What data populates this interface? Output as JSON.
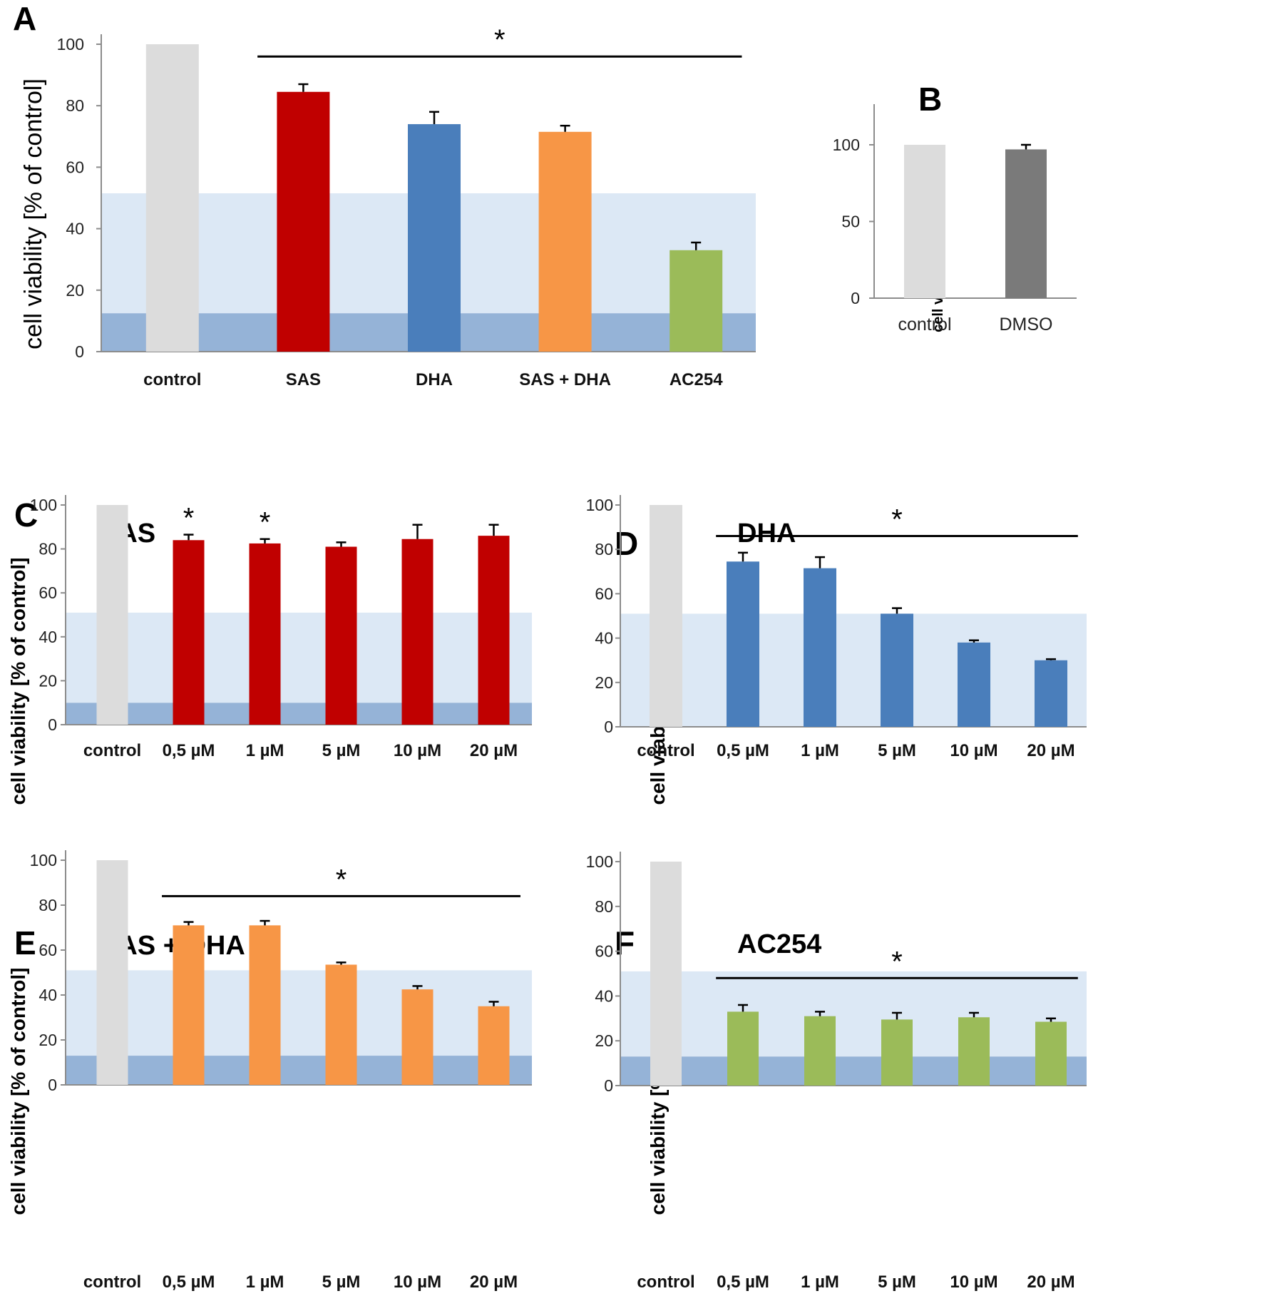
{
  "colors": {
    "control": "#dcdcdc",
    "dmso": "#7a7a7a",
    "sas": "#c00000",
    "dha": "#4a7ebb",
    "combo": "#f79646",
    "ac254": "#9bbb59",
    "band_light": "#dce8f5",
    "band_dark": "#95b3d7"
  },
  "chart_data": [
    {
      "panel": "A",
      "type": "bar",
      "title": "",
      "ylabel": "cell viability  [% of control]",
      "xlabel": "",
      "ylim": [
        0,
        100
      ],
      "yticks": [
        "0",
        "20",
        "40",
        "60",
        "80",
        "100"
      ],
      "categories": [
        "control",
        "SAS",
        "DHA",
        "SAS + DHA",
        "AC254"
      ],
      "values": [
        100,
        84.5,
        74,
        71.5,
        33
      ],
      "errors": [
        0,
        2.5,
        4,
        2,
        2.5
      ],
      "bar_colors": [
        "control",
        "sas",
        "dha",
        "combo",
        "ac254"
      ],
      "bands": [
        [
          0,
          12.5,
          "band_dark"
        ],
        [
          12.5,
          51.5,
          "band_light"
        ]
      ],
      "significance": [
        {
          "label": "*",
          "from": 1,
          "to": 4,
          "level": 96
        }
      ]
    },
    {
      "panel": "B",
      "type": "bar",
      "title": "",
      "ylabel": "cell viability  [% of control]",
      "xlabel": "",
      "ylim": [
        0,
        120
      ],
      "yticks": [
        "0",
        "50",
        "100"
      ],
      "categories": [
        "control",
        "DMSO"
      ],
      "values": [
        100,
        97
      ],
      "errors": [
        0,
        3
      ],
      "bar_colors": [
        "control",
        "dmso"
      ],
      "bands": [],
      "significance": []
    },
    {
      "panel": "C",
      "type": "bar",
      "title": "SAS",
      "ylabel": "cell viability  [% of control]",
      "xlabel": "",
      "ylim": [
        0,
        100
      ],
      "yticks": [
        "0",
        "20",
        "40",
        "60",
        "80",
        "100"
      ],
      "categories": [
        "control",
        "0,5 µM",
        "1 µM",
        "5 µM",
        "10 µM",
        "20 µM"
      ],
      "values": [
        100,
        84,
        82.5,
        81,
        84.5,
        86
      ],
      "errors": [
        0,
        2.5,
        2,
        2,
        6.5,
        5
      ],
      "bar_colors": [
        "control",
        "sas",
        "sas",
        "sas",
        "sas",
        "sas"
      ],
      "bands": [
        [
          0,
          10,
          "band_dark"
        ],
        [
          10,
          51,
          "band_light"
        ]
      ],
      "significance": [
        {
          "label": "*",
          "index": 1
        },
        {
          "label": "*",
          "index": 2
        }
      ]
    },
    {
      "panel": "D",
      "type": "bar",
      "title": "DHA",
      "ylabel": "cell viability  [% of control]",
      "xlabel": "",
      "ylim": [
        0,
        100
      ],
      "yticks": [
        "0",
        "20",
        "40",
        "60",
        "80",
        "100"
      ],
      "categories": [
        "control",
        "0,5 µM",
        "1 µM",
        "5 µM",
        "10 µM",
        "20 µM"
      ],
      "values": [
        100,
        74.5,
        71.5,
        51,
        38,
        30
      ],
      "errors": [
        0,
        4,
        5,
        2.5,
        1,
        0.5
      ],
      "bar_colors": [
        "control",
        "dha",
        "dha",
        "dha",
        "dha",
        "dha"
      ],
      "bands": [
        [
          0,
          51,
          "band_light"
        ]
      ],
      "significance": [
        {
          "label": "*",
          "from": 1,
          "to": 5,
          "level": 86
        }
      ]
    },
    {
      "panel": "E",
      "type": "bar",
      "title": "SAS + DHA",
      "ylabel": "cell viability  [% of control]",
      "xlabel": "",
      "ylim": [
        0,
        100
      ],
      "yticks": [
        "0",
        "20",
        "40",
        "60",
        "80",
        "100"
      ],
      "categories": [
        "control",
        "0,5 µM",
        "1 µM",
        "5 µM",
        "10 µM",
        "20 µM"
      ],
      "values": [
        100,
        71,
        71,
        53.5,
        42.5,
        35
      ],
      "errors": [
        0,
        1.5,
        2,
        1,
        1.5,
        2
      ],
      "bar_colors": [
        "control",
        "combo",
        "combo",
        "combo",
        "combo",
        "combo"
      ],
      "bands": [
        [
          0,
          13,
          "band_dark"
        ],
        [
          13,
          51,
          "band_light"
        ]
      ],
      "significance": [
        {
          "label": "*",
          "from": 1,
          "to": 5,
          "level": 84
        }
      ]
    },
    {
      "panel": "F",
      "type": "bar",
      "title": "AC254",
      "ylabel": "cell viability  [% of control]",
      "xlabel": "",
      "ylim": [
        0,
        100
      ],
      "yticks": [
        "0",
        "20",
        "40",
        "60",
        "80",
        "100"
      ],
      "categories": [
        "control",
        "0,5 µM",
        "1 µM",
        "5 µM",
        "10 µM",
        "20 µM"
      ],
      "values": [
        100,
        33,
        31,
        29.5,
        30.5,
        28.5
      ],
      "errors": [
        0,
        3,
        2,
        3,
        2,
        1.5
      ],
      "bar_colors": [
        "control",
        "ac254",
        "ac254",
        "ac254",
        "ac254",
        "ac254"
      ],
      "bands": [
        [
          0,
          13,
          "band_dark"
        ],
        [
          13,
          51,
          "band_light"
        ]
      ],
      "significance": [
        {
          "label": "*",
          "from": 1,
          "to": 5,
          "level": 48
        }
      ]
    }
  ]
}
